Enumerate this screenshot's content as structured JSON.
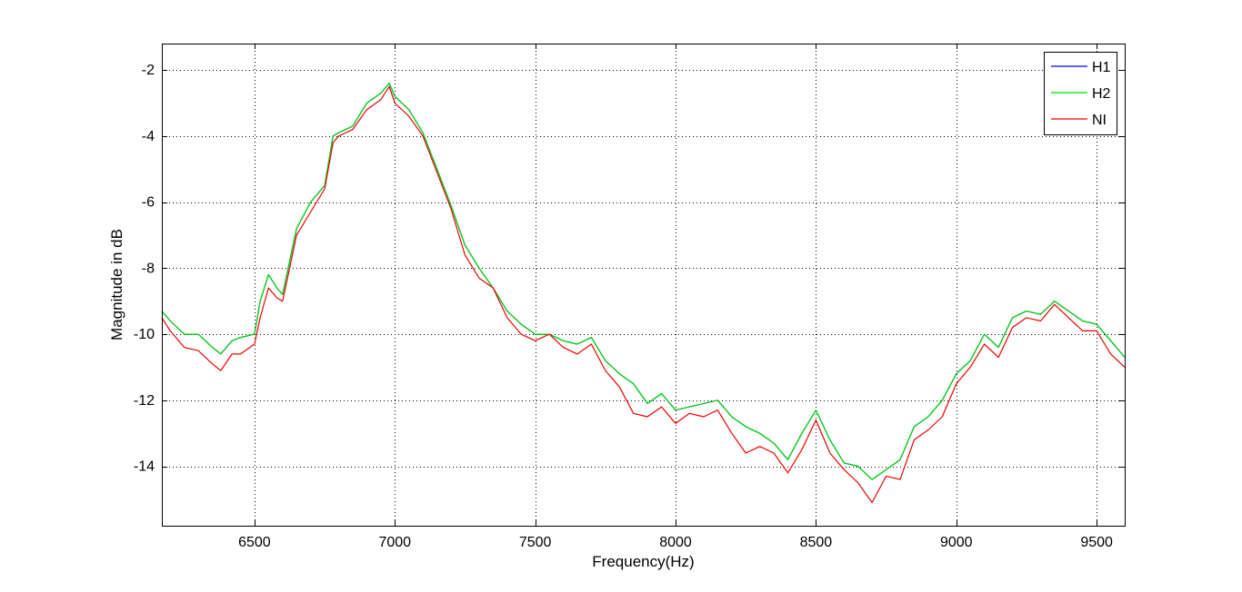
{
  "chart_data": {
    "type": "line",
    "title": "",
    "xlabel": "Frequency(Hz)",
    "ylabel": "Magnitude in dB",
    "xlim": [
      6170,
      9600
    ],
    "ylim": [
      -15.8,
      -1.2
    ],
    "xticks": [
      6500,
      7000,
      7500,
      8000,
      8500,
      9000,
      9500
    ],
    "yticks": [
      -2,
      -4,
      -6,
      -8,
      -10,
      -12,
      -14
    ],
    "xtick_labels": [
      "6500",
      "7000",
      "7500",
      "8000",
      "8500",
      "9000",
      "9500"
    ],
    "ytick_labels": [
      "-2",
      "-4",
      "-6",
      "-8",
      "-10",
      "-12",
      "-14"
    ],
    "grid": true,
    "grid_style": "dotted",
    "legend_position": "top-right",
    "series": [
      {
        "name": "H1",
        "color": "#0000ff",
        "x": [
          6170,
          6200,
          6250,
          6300,
          6350,
          6380,
          6420,
          6450,
          6500,
          6520,
          6550,
          6580,
          6600,
          6650,
          6700,
          6750,
          6780,
          6800,
          6850,
          6900,
          6950,
          6980,
          7000,
          7050,
          7100,
          7150,
          7200,
          7250,
          7300,
          7350,
          7400,
          7450,
          7500,
          7550,
          7600,
          7650,
          7700,
          7750,
          7800,
          7850,
          7900,
          7950,
          8000,
          8050,
          8100,
          8150,
          8200,
          8250,
          8300,
          8350,
          8400,
          8450,
          8500,
          8550,
          8600,
          8650,
          8700,
          8750,
          8800,
          8850,
          8900,
          8950,
          9000,
          9050,
          9100,
          9150,
          9200,
          9250,
          9300,
          9350,
          9400,
          9450,
          9500,
          9550,
          9600
        ],
        "y": [
          -9.3,
          -9.6,
          -10.0,
          -10.0,
          -10.4,
          -10.6,
          -10.2,
          -10.1,
          -10.0,
          -9.0,
          -8.2,
          -8.6,
          -8.8,
          -6.8,
          -6.0,
          -5.5,
          -4.0,
          -3.9,
          -3.7,
          -3.0,
          -2.7,
          -2.4,
          -2.8,
          -3.2,
          -3.9,
          -5.0,
          -6.1,
          -7.3,
          -8.0,
          -8.6,
          -9.3,
          -9.7,
          -10.0,
          -10.0,
          -10.2,
          -10.3,
          -10.1,
          -10.8,
          -11.2,
          -11.5,
          -12.1,
          -11.8,
          -12.3,
          -12.2,
          -12.1,
          -12.0,
          -12.5,
          -12.8,
          -13.0,
          -13.3,
          -13.8,
          -13.0,
          -12.3,
          -13.2,
          -13.9,
          -14.0,
          -14.4,
          -14.1,
          -13.8,
          -12.8,
          -12.5,
          -12.0,
          -11.2,
          -10.8,
          -10.0,
          -10.4,
          -9.5,
          -9.3,
          -9.4,
          -9.0,
          -9.3,
          -9.6,
          -9.7,
          -10.2,
          -10.7
        ]
      },
      {
        "name": "H2",
        "color": "#00dd00",
        "x": [
          6170,
          6200,
          6250,
          6300,
          6350,
          6380,
          6420,
          6450,
          6500,
          6520,
          6550,
          6580,
          6600,
          6650,
          6700,
          6750,
          6780,
          6800,
          6850,
          6900,
          6950,
          6980,
          7000,
          7050,
          7100,
          7150,
          7200,
          7250,
          7300,
          7350,
          7400,
          7450,
          7500,
          7550,
          7600,
          7650,
          7700,
          7750,
          7800,
          7850,
          7900,
          7950,
          8000,
          8050,
          8100,
          8150,
          8200,
          8250,
          8300,
          8350,
          8400,
          8450,
          8500,
          8550,
          8600,
          8650,
          8700,
          8750,
          8800,
          8850,
          8900,
          8950,
          9000,
          9050,
          9100,
          9150,
          9200,
          9250,
          9300,
          9350,
          9400,
          9450,
          9500,
          9550,
          9600
        ],
        "y": [
          -9.3,
          -9.6,
          -10.0,
          -10.0,
          -10.4,
          -10.6,
          -10.2,
          -10.1,
          -10.0,
          -9.0,
          -8.2,
          -8.6,
          -8.8,
          -6.8,
          -6.0,
          -5.5,
          -4.0,
          -3.9,
          -3.7,
          -3.0,
          -2.7,
          -2.4,
          -2.8,
          -3.2,
          -3.9,
          -5.0,
          -6.1,
          -7.3,
          -8.0,
          -8.6,
          -9.3,
          -9.7,
          -10.0,
          -10.0,
          -10.2,
          -10.3,
          -10.1,
          -10.8,
          -11.2,
          -11.5,
          -12.1,
          -11.8,
          -12.3,
          -12.2,
          -12.1,
          -12.0,
          -12.5,
          -12.8,
          -13.0,
          -13.3,
          -13.8,
          -13.0,
          -12.3,
          -13.2,
          -13.9,
          -14.0,
          -14.4,
          -14.1,
          -13.8,
          -12.8,
          -12.5,
          -12.0,
          -11.2,
          -10.8,
          -10.0,
          -10.4,
          -9.5,
          -9.3,
          -9.4,
          -9.0,
          -9.3,
          -9.6,
          -9.7,
          -10.2,
          -10.7
        ]
      },
      {
        "name": "NI",
        "color": "#ee0000",
        "x": [
          6170,
          6200,
          6250,
          6300,
          6350,
          6380,
          6420,
          6450,
          6500,
          6520,
          6550,
          6580,
          6600,
          6650,
          6700,
          6750,
          6780,
          6800,
          6850,
          6900,
          6950,
          6980,
          7000,
          7050,
          7100,
          7150,
          7200,
          7250,
          7300,
          7350,
          7400,
          7450,
          7500,
          7550,
          7600,
          7650,
          7700,
          7750,
          7800,
          7850,
          7900,
          7950,
          8000,
          8050,
          8100,
          8150,
          8200,
          8250,
          8300,
          8350,
          8400,
          8450,
          8500,
          8550,
          8600,
          8650,
          8700,
          8750,
          8800,
          8850,
          8900,
          8950,
          9000,
          9050,
          9100,
          9150,
          9200,
          9250,
          9300,
          9350,
          9400,
          9450,
          9500,
          9550,
          9600
        ],
        "y": [
          -9.5,
          -9.9,
          -10.4,
          -10.5,
          -10.9,
          -11.1,
          -10.6,
          -10.6,
          -10.3,
          -9.5,
          -8.6,
          -8.9,
          -9.0,
          -7.0,
          -6.3,
          -5.6,
          -4.2,
          -4.0,
          -3.8,
          -3.2,
          -2.9,
          -2.5,
          -3.0,
          -3.4,
          -4.0,
          -5.1,
          -6.2,
          -7.6,
          -8.3,
          -8.6,
          -9.5,
          -10.0,
          -10.2,
          -10.0,
          -10.4,
          -10.6,
          -10.3,
          -11.1,
          -11.6,
          -12.4,
          -12.5,
          -12.2,
          -12.7,
          -12.4,
          -12.5,
          -12.3,
          -13.0,
          -13.6,
          -13.4,
          -13.6,
          -14.2,
          -13.5,
          -12.6,
          -13.6,
          -14.1,
          -14.5,
          -15.1,
          -14.3,
          -14.4,
          -13.2,
          -12.9,
          -12.5,
          -11.5,
          -11.0,
          -10.3,
          -10.7,
          -9.8,
          -9.5,
          -9.6,
          -9.1,
          -9.5,
          -9.9,
          -9.9,
          -10.6,
          -11.0
        ]
      }
    ]
  }
}
